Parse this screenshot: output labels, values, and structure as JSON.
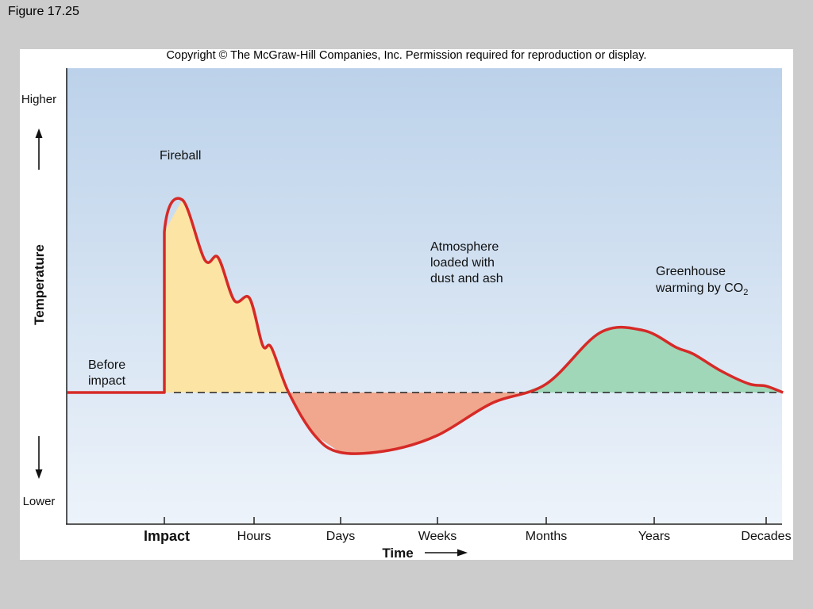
{
  "figure_label": "Figure 17.25",
  "copyright": "Copyright © The McGraw-Hill Companies, Inc. Permission required for reproduction or display.",
  "colors": {
    "curve": "#d62a27",
    "fireball_fill": "#fce4a4",
    "cooling_fill": "#f0a78d",
    "greenhouse_fill": "#9fd7b8",
    "sky_top": "#bcd2ea",
    "sky_bottom": "#edf3fa"
  },
  "chart_data": {
    "type": "line",
    "title": "",
    "xlabel": "Time",
    "ylabel": "Temperature",
    "y_high_label": "Higher",
    "y_low_label": "Lower",
    "y_scale": "qualitative",
    "x_scale": "logarithmic (qualitative)",
    "baseline_style": "dashed",
    "categories": [
      "Impact",
      "Hours",
      "Days",
      "Weeks",
      "Months",
      "Years",
      "Decades"
    ],
    "series": [
      {
        "values_description": "temperature relative to pre-impact baseline (qualitative, baseline = 0)",
        "x": [
          -1.0,
          0.0,
          0.0,
          0.2,
          0.45,
          0.6,
          0.78,
          0.95,
          1.1,
          1.2,
          1.4,
          1.7,
          2.0,
          2.5,
          3.0,
          3.5,
          4.0,
          4.5,
          4.9,
          5.2,
          5.35,
          5.6,
          5.85,
          6.0,
          6.15
        ],
        "y": [
          0.0,
          0.0,
          0.75,
          0.9,
          0.62,
          0.63,
          0.43,
          0.44,
          0.22,
          0.21,
          0.0,
          -0.2,
          -0.28,
          -0.27,
          -0.2,
          -0.05,
          0.04,
          0.28,
          0.29,
          0.21,
          0.18,
          0.1,
          0.04,
          0.03,
          0.0
        ]
      }
    ],
    "annotations": [
      {
        "id": "before",
        "lines": [
          "Before",
          "impact"
        ]
      },
      {
        "id": "fireball",
        "lines": [
          "Fireball"
        ]
      },
      {
        "id": "atmosphere",
        "lines": [
          "Atmosphere",
          "loaded with",
          "dust and ash"
        ]
      },
      {
        "id": "greenhouse",
        "lines": [
          "Greenhouse",
          "warming by CO"
        ],
        "subscript": "2"
      }
    ]
  }
}
